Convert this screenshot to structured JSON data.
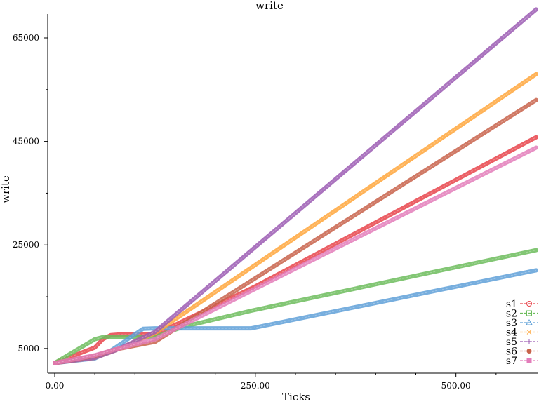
{
  "chart_data": {
    "type": "line",
    "title": "write",
    "xlabel": "Ticks",
    "ylabel": "write",
    "xlim": [
      0,
      600
    ],
    "ylim": [
      0,
      70000
    ],
    "x_ticks": [
      0,
      250,
      500
    ],
    "x_tick_labels": [
      "0.00",
      "250.00",
      "500.00"
    ],
    "y_ticks": [
      5000,
      25000,
      45000,
      65000
    ],
    "y_tick_labels": [
      "5000",
      "25000",
      "45000",
      "65000"
    ],
    "grid": false,
    "legend_position": "bottom-right",
    "series": [
      {
        "name": "s1",
        "color": "#e8434a",
        "marker": "circle",
        "points": [
          [
            0,
            2200
          ],
          [
            50,
            5200
          ],
          [
            60,
            6800
          ],
          [
            70,
            7600
          ],
          [
            80,
            7700
          ],
          [
            125,
            7700
          ],
          [
            250,
            17000
          ],
          [
            600,
            45800
          ]
        ]
      },
      {
        "name": "s2",
        "color": "#6cbc5c",
        "marker": "square",
        "points": [
          [
            0,
            2200
          ],
          [
            50,
            6800
          ],
          [
            60,
            7200
          ],
          [
            125,
            7200
          ],
          [
            160,
            9200
          ],
          [
            245,
            12300
          ],
          [
            600,
            24000
          ]
        ]
      },
      {
        "name": "s3",
        "color": "#5fa0d8",
        "marker": "triangle",
        "points": [
          [
            0,
            2200
          ],
          [
            50,
            3100
          ],
          [
            70,
            4600
          ],
          [
            110,
            8800
          ],
          [
            125,
            8900
          ],
          [
            245,
            8900
          ],
          [
            600,
            20100
          ]
        ]
      },
      {
        "name": "s4",
        "color": "#ffa63b",
        "marker": "x",
        "points": [
          [
            0,
            2200
          ],
          [
            50,
            3200
          ],
          [
            75,
            4600
          ],
          [
            125,
            8000
          ],
          [
            600,
            58000
          ]
        ]
      },
      {
        "name": "s5",
        "color": "#9b5bb3",
        "marker": "plus",
        "points": [
          [
            0,
            2200
          ],
          [
            50,
            3200
          ],
          [
            75,
            4600
          ],
          [
            125,
            8200
          ],
          [
            600,
            70500
          ]
        ]
      },
      {
        "name": "s6",
        "color": "#c8624a",
        "marker": "dot",
        "points": [
          [
            0,
            2200
          ],
          [
            50,
            3600
          ],
          [
            75,
            4800
          ],
          [
            125,
            6300
          ],
          [
            600,
            53000
          ]
        ]
      },
      {
        "name": "s7",
        "color": "#e37cba",
        "marker": "filled-square",
        "points": [
          [
            0,
            2200
          ],
          [
            50,
            3700
          ],
          [
            75,
            4800
          ],
          [
            125,
            6800
          ],
          [
            600,
            43800
          ]
        ]
      }
    ]
  }
}
